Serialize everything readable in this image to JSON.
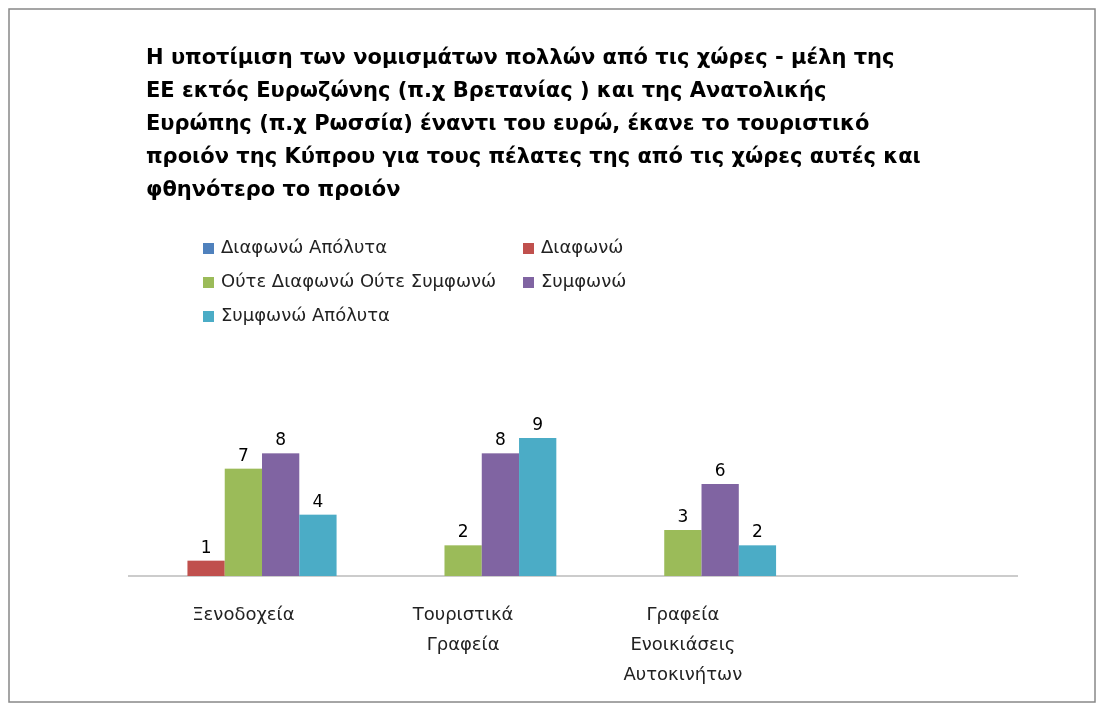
{
  "chart_data": {
    "type": "bar",
    "title": "Η υποτίμιση των νομισμάτων πολλών από τις χώρες - μέλη της\nΕΕ εκτός Ευρωζώνης (π.χ  Βρετανίας ) και της Ανατολικής\nΕυρώπης (π.χ Ρωσσία) έναντι του ευρώ, έκανε το τουριστικό\nπροιόν της Κύπρου για τους πέλατες της από τις χώρες αυτές και\nφθηνότερο το προιόν",
    "categories": [
      "Ξενοδοχεία",
      "Τουριστικά Γραφεία",
      "Γραφεία Ενοικιάσεις Αυτοκινήτων",
      null
    ],
    "series": [
      {
        "name": "Διαφωνώ Απόλυτα",
        "color": "#4f81bd",
        "values": [
          null,
          null,
          null,
          null
        ]
      },
      {
        "name": "Διαφωνώ",
        "color": "#c0504d",
        "values": [
          1,
          null,
          null,
          null
        ]
      },
      {
        "name": "Ούτε Διαφωνώ Ούτε Συμφωνώ",
        "color": "#9bbb59",
        "values": [
          7,
          2,
          3,
          null
        ]
      },
      {
        "name": "Συμφωνώ",
        "color": "#8064a2",
        "values": [
          8,
          8,
          6,
          null
        ]
      },
      {
        "name": "Συμφωνώ Απόλυτα",
        "color": "#4bacc6",
        "values": [
          4,
          9,
          2,
          null
        ]
      }
    ],
    "data_labels": true,
    "legend": "top",
    "grid": false
  }
}
